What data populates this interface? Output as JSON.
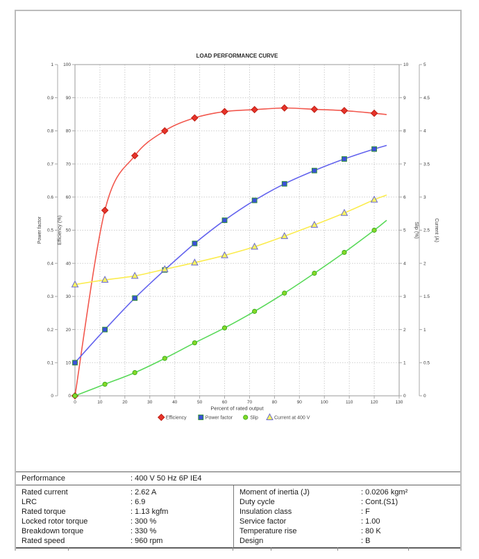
{
  "chart_data": {
    "type": "line",
    "title": "LOAD PERFORMANCE CURVE",
    "xlabel": "Percent of rated output",
    "xlim": [
      0,
      130
    ],
    "x_ticks": [
      "0",
      "10",
      "20",
      "30",
      "40",
      "50",
      "60",
      "70",
      "80",
      "90",
      "100",
      "110",
      "120",
      "130"
    ],
    "grid": "dotted",
    "legend_position": "bottom",
    "axes": [
      {
        "id": "power_factor",
        "title": "Power factor",
        "side": "left",
        "range": [
          0,
          1
        ],
        "ticks": [
          "0",
          "0.1",
          "0.2",
          "0.3",
          "0.4",
          "0.5",
          "0.6",
          "0.7",
          "0.8",
          "0.9",
          "1"
        ]
      },
      {
        "id": "efficiency",
        "title": "Efficiency (%)",
        "side": "left",
        "range": [
          0,
          100
        ],
        "ticks": [
          "0",
          "10",
          "20",
          "30",
          "40",
          "50",
          "60",
          "70",
          "80",
          "90",
          "100"
        ]
      },
      {
        "id": "slip",
        "title": "Slip (%)",
        "side": "right",
        "range": [
          0,
          10
        ],
        "ticks": [
          "0",
          "1",
          "2",
          "3",
          "4",
          "5",
          "6",
          "7",
          "8",
          "9",
          "10"
        ]
      },
      {
        "id": "current",
        "title": "Current (A)",
        "side": "right",
        "range": [
          0,
          5
        ],
        "ticks": [
          "0",
          "0.5",
          "1",
          "1.5",
          "2",
          "2.5",
          "3",
          "3.5",
          "4",
          "4.5",
          "5"
        ]
      }
    ],
    "x": [
      0,
      12,
      24,
      36,
      48,
      60,
      72,
      84,
      96,
      108,
      120
    ],
    "series": [
      {
        "name": "Efficiency",
        "axis": "efficiency",
        "marker": "diamond",
        "line_color": "#f2574d",
        "marker_fill": "#e6332a",
        "marker_edge": "#bf1d12",
        "values": [
          0,
          56,
          72.5,
          80,
          83.9,
          85.8,
          86.4,
          86.9,
          86.5,
          86.1,
          85.3
        ],
        "line_end": {
          "x": 125,
          "value": 84.9
        }
      },
      {
        "name": "Power factor",
        "axis": "power_factor",
        "marker": "square",
        "line_color": "#6363ee",
        "marker_fill": "#3a50d9",
        "marker_edge": "#2f8e33",
        "values": [
          0.1,
          0.2,
          0.295,
          0.38,
          0.46,
          0.53,
          0.59,
          0.64,
          0.68,
          0.715,
          0.745
        ],
        "line_end": {
          "x": 125,
          "value": 0.756
        }
      },
      {
        "name": "Slip",
        "axis": "slip",
        "marker": "circle",
        "line_color": "#58d958",
        "marker_fill": "#85d928",
        "marker_edge": "#3faf20",
        "values": [
          0,
          0.35,
          0.7,
          1.13,
          1.6,
          2.05,
          2.55,
          3.1,
          3.7,
          4.33,
          5.0
        ],
        "line_end": {
          "x": 125,
          "value": 5.3
        }
      },
      {
        "name": "Current at 400 V",
        "axis": "current",
        "marker": "triangle",
        "line_color": "#fbec4e",
        "marker_fill": "#faf561",
        "marker_edge": "#6a6ad1",
        "values": [
          1.68,
          1.75,
          1.81,
          1.91,
          2.01,
          2.12,
          2.25,
          2.41,
          2.58,
          2.76,
          2.96
        ],
        "line_end": {
          "x": 125,
          "value": 3.03
        }
      }
    ],
    "colors": {
      "grid": "#cdcdcd",
      "plot_border": "#9a9a9a",
      "axis_line": "#a8a8a8",
      "tick_text": "#3c3c3c",
      "title_text": "#2b2b2b",
      "legend_text": "#4a4a4a"
    }
  },
  "table": {
    "performance": {
      "label": "Performance",
      "value": ": 400 V 50 Hz 6P IE4"
    },
    "left_rows": [
      {
        "label": "Rated current",
        "value": ": 2.62 A"
      },
      {
        "label": "LRC",
        "value": ": 6.9"
      },
      {
        "label": "Rated torque",
        "value": ": 1.13 kgfm"
      },
      {
        "label": "Locked rotor torque",
        "value": ": 300 %"
      },
      {
        "label": "Breakdown torque",
        "value": ": 330 %"
      },
      {
        "label": "Rated speed",
        "value": ": 960 rpm"
      }
    ],
    "right_rows": [
      {
        "label": "Moment of inertia (J)",
        "value": ": 0.0206 kgm²"
      },
      {
        "label": "Duty cycle",
        "value": ": Cont.(S1)"
      },
      {
        "label": "Insulation class",
        "value": ": F"
      },
      {
        "label": "Service factor",
        "value": ": 1.00"
      },
      {
        "label": "Temperature rise",
        "value": ": 80 K"
      },
      {
        "label": "Design",
        "value": ": B"
      }
    ]
  }
}
